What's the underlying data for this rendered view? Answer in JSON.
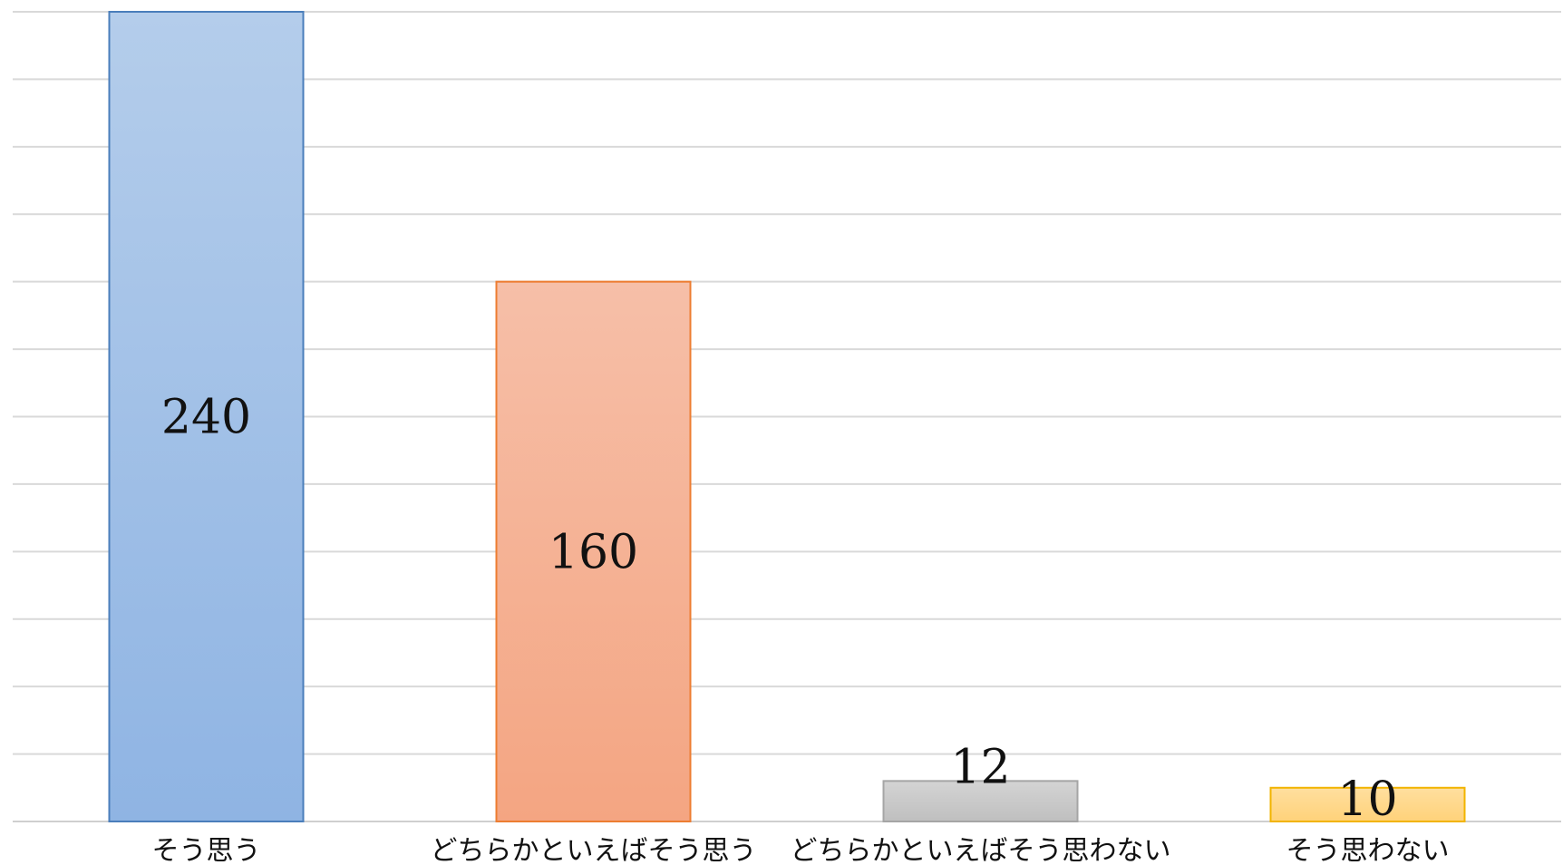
{
  "chart_data": {
    "type": "bar",
    "categories": [
      "そう思う",
      "どちらかといえばそう思う",
      "どちらかといえばそう思わない",
      "そう思わない"
    ],
    "values": [
      240,
      160,
      12,
      10
    ],
    "colors": [
      "#8fb4e3",
      "#f4a582",
      "#bfbfbf",
      "#ffd27a"
    ],
    "colors_top": [
      "#b4cdeb",
      "#f6bfa8",
      "#d4d4d4",
      "#ffdf9f"
    ],
    "border_colors": [
      "#4a7ebb",
      "#ed7d31",
      "#a5a5a5",
      "#f2b400"
    ],
    "ylim": [
      0,
      240
    ],
    "grid": true,
    "legend": "none",
    "title": "",
    "xlabel": "",
    "ylabel": ""
  }
}
